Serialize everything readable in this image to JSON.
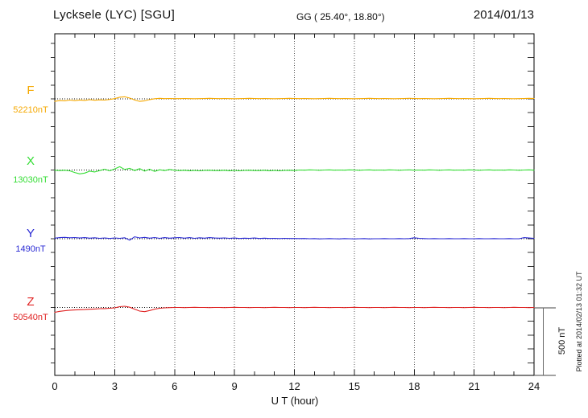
{
  "header": {
    "station": "Lycksele (LYC)  [SGU]",
    "coords": "GG ( 25.40°,  18.80°)",
    "date": "2014/01/13"
  },
  "x_axis": {
    "label": "U T (hour)",
    "ticks": [
      0,
      3,
      6,
      9,
      12,
      15,
      18,
      21,
      24
    ]
  },
  "scale_bar": {
    "label": "500 nT"
  },
  "plotted_note": "Plotted at 2014/02/13 01:32 UT",
  "channels": [
    {
      "label": "F",
      "value_label": "52210nT",
      "color": "#f5a800"
    },
    {
      "label": "X",
      "value_label": "13030nT",
      "color": "#33dd33"
    },
    {
      "label": "Y",
      "value_label": "1490nT",
      "color": "#2a2ad4"
    },
    {
      "label": "Z",
      "value_label": "50540nT",
      "color": "#e02222"
    }
  ],
  "chart_data": {
    "type": "line",
    "title": "Lycksele (LYC) [SGU] magnetogram 2014/01/13",
    "xlabel": "U T (hour)",
    "x_start": 0,
    "x_end": 24,
    "xlim": [
      0,
      24
    ],
    "grid": "vertical dotted every 3 hours",
    "legend_position": "left margin channel labels",
    "scale_reference": {
      "label": "500 nT",
      "pixels": 86
    },
    "series": [
      {
        "name": "F",
        "baseline_nT": 52210,
        "color": "#f5a800",
        "offsets_nT": [
          -18,
          -12,
          -14,
          -9,
          -13,
          -8,
          -11,
          -6,
          -10,
          -7,
          -9,
          -4,
          2,
          12,
          15,
          6,
          -8,
          -18,
          -14,
          -5,
          1,
          4,
          2,
          3,
          2,
          2,
          3,
          2,
          1,
          2,
          3,
          4,
          3,
          2,
          3,
          2,
          1,
          2,
          3,
          4,
          3,
          2,
          3,
          2,
          1,
          2,
          3,
          4,
          3,
          2,
          3,
          2,
          1,
          2,
          3,
          4,
          3,
          2,
          3,
          2,
          1,
          2,
          3,
          4,
          3,
          2,
          3,
          2,
          1,
          2,
          3,
          4,
          3,
          2,
          3,
          2,
          1,
          2,
          3,
          4,
          3,
          2,
          3,
          2,
          1,
          2,
          3,
          4,
          3,
          2,
          3,
          2,
          1,
          2,
          3,
          4,
          3
        ]
      },
      {
        "name": "X",
        "baseline_nT": 13030,
        "color": "#33dd33",
        "offsets_nT": [
          -2,
          -4,
          -2,
          -6,
          -18,
          -28,
          -22,
          -8,
          -14,
          -4,
          6,
          -6,
          8,
          24,
          4,
          12,
          -4,
          10,
          -8,
          6,
          -10,
          2,
          -4,
          4,
          -2,
          -4,
          -2,
          -5,
          -3,
          -6,
          -3,
          -2,
          -4,
          -4,
          -2,
          -5,
          -3,
          -6,
          -3,
          -2,
          -4,
          -4,
          -2,
          -5,
          -3,
          -6,
          -3,
          -2,
          -4,
          0,
          -1,
          1,
          0,
          -2,
          0,
          1,
          -1,
          0,
          -1,
          1,
          0,
          -2,
          0,
          1,
          -1,
          0,
          -1,
          1,
          0,
          -2,
          0,
          1,
          -1,
          0,
          -1,
          1,
          0,
          -2,
          0,
          1,
          -1,
          0,
          -1,
          1,
          0,
          -2,
          0,
          1,
          -1,
          0,
          -1,
          1,
          0,
          -2,
          0,
          1,
          -1
        ]
      },
      {
        "name": "Y",
        "baseline_nT": 1490,
        "color": "#2a2ad4",
        "offsets_nT": [
          4,
          8,
          10,
          7,
          9,
          5,
          8,
          4,
          7,
          3,
          6,
          2,
          6,
          3,
          7,
          -10,
          14,
          6,
          10,
          4,
          9,
          3,
          8,
          4,
          7,
          9,
          4,
          8,
          3,
          7,
          4,
          8,
          5,
          4,
          6,
          3,
          5,
          2,
          4,
          3,
          5,
          2,
          4,
          2,
          3,
          1,
          3,
          2,
          2,
          1,
          2,
          0,
          1,
          -1,
          0,
          1,
          0,
          -1,
          1,
          0,
          -1,
          0,
          1,
          -1,
          0,
          0,
          1,
          0,
          0,
          1,
          0,
          1,
          7,
          3,
          1,
          0,
          1,
          0,
          0,
          1,
          0,
          0,
          1,
          0,
          0,
          1,
          0,
          0,
          1,
          0,
          0,
          1,
          0,
          0,
          8,
          5,
          3
        ]
      },
      {
        "name": "Z",
        "baseline_nT": 50540,
        "color": "#e02222",
        "offsets_nT": [
          -35,
          -28,
          -24,
          -20,
          -18,
          -16,
          -15,
          -13,
          -11,
          -9,
          -8,
          -6,
          -3,
          6,
          9,
          2,
          -12,
          -26,
          -30,
          -22,
          -12,
          -6,
          -3,
          -1,
          0,
          0,
          -1,
          0,
          1,
          0,
          0,
          -1,
          0,
          0,
          -1,
          0,
          1,
          0,
          0,
          -1,
          0,
          0,
          -1,
          0,
          1,
          0,
          0,
          -1,
          0,
          0,
          -1,
          0,
          1,
          0,
          0,
          -1,
          0,
          0,
          -1,
          0,
          1,
          0,
          0,
          -1,
          0,
          0,
          -1,
          0,
          1,
          0,
          0,
          -1,
          0,
          0,
          -1,
          0,
          1,
          0,
          0,
          -1,
          0,
          0,
          -1,
          0,
          1,
          0,
          0,
          -1,
          0,
          0,
          -1,
          0,
          1,
          0,
          0,
          -1,
          0
        ]
      }
    ]
  }
}
